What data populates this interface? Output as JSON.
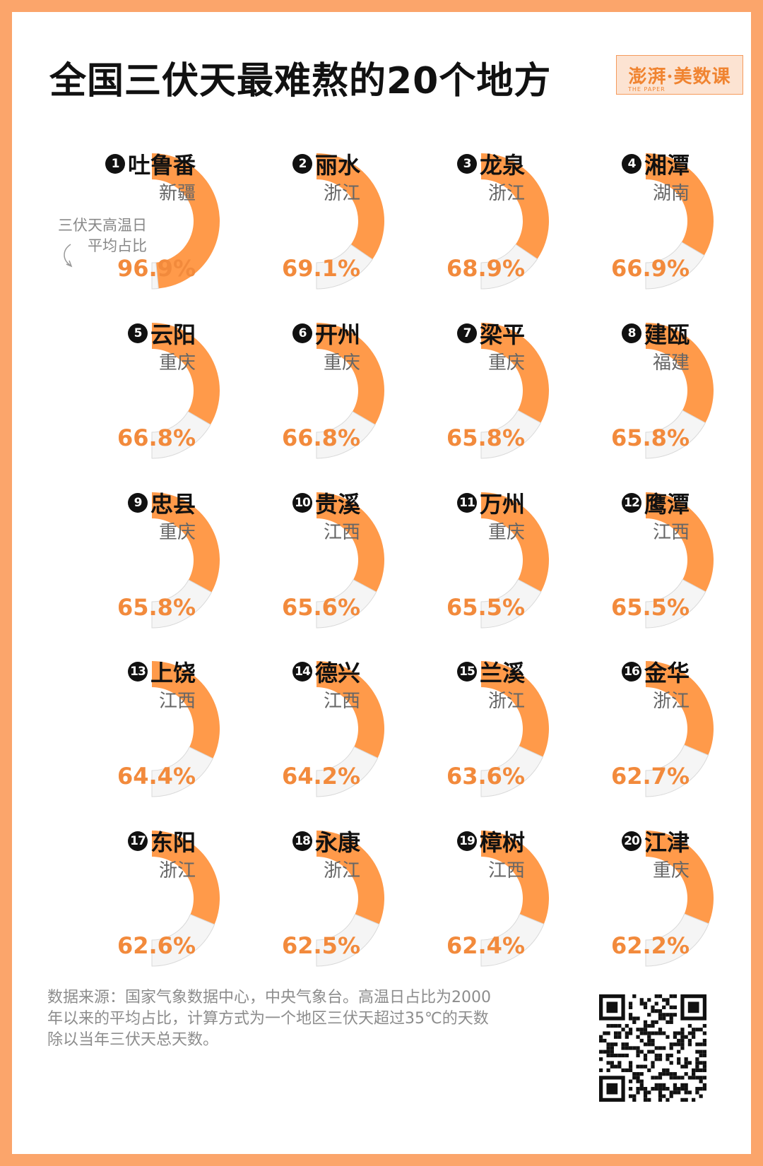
{
  "title": "全国三伏天最难熬的20个地方",
  "logo": {
    "brand": "澎湃·美数课",
    "sub": "THE PAPER"
  },
  "note": {
    "line1": "三伏天高温日",
    "line2": "平均占比"
  },
  "footer": "数据来源：国家气象数据中心，中央气象台。高温日占比为2000年以来的平均占比，计算方式为一个地区三伏天超过35℃的天数除以当年三伏天总天数。",
  "colors": {
    "accent": "#FF9A4A",
    "rest": "#F5F5F5",
    "border": "#FBA56B",
    "pct": "#F28A3C"
  },
  "chart_data": {
    "type": "pie",
    "series_label": "三伏天高温日平均占比",
    "items": [
      {
        "rank": "1",
        "name": "吐鲁番",
        "province": "新疆",
        "value": 96.9,
        "label": "96.9%"
      },
      {
        "rank": "2",
        "name": "丽水",
        "province": "浙江",
        "value": 69.1,
        "label": "69.1%"
      },
      {
        "rank": "3",
        "name": "龙泉",
        "province": "浙江",
        "value": 68.9,
        "label": "68.9%"
      },
      {
        "rank": "4",
        "name": "湘潭",
        "province": "湖南",
        "value": 66.9,
        "label": "66.9%"
      },
      {
        "rank": "5",
        "name": "云阳",
        "province": "重庆",
        "value": 66.8,
        "label": "66.8%"
      },
      {
        "rank": "6",
        "name": "开州",
        "province": "重庆",
        "value": 66.8,
        "label": "66.8%"
      },
      {
        "rank": "7",
        "name": "梁平",
        "province": "重庆",
        "value": 65.8,
        "label": "65.8%"
      },
      {
        "rank": "8",
        "name": "建瓯",
        "province": "福建",
        "value": 65.8,
        "label": "65.8%"
      },
      {
        "rank": "9",
        "name": "忠县",
        "province": "重庆",
        "value": 65.8,
        "label": "65.8%"
      },
      {
        "rank": "10",
        "name": "贵溪",
        "province": "江西",
        "value": 65.6,
        "label": "65.6%"
      },
      {
        "rank": "11",
        "name": "万州",
        "province": "重庆",
        "value": 65.5,
        "label": "65.5%"
      },
      {
        "rank": "12",
        "name": "鹰潭",
        "province": "江西",
        "value": 65.5,
        "label": "65.5%"
      },
      {
        "rank": "13",
        "name": "上饶",
        "province": "江西",
        "value": 64.4,
        "label": "64.4%"
      },
      {
        "rank": "14",
        "name": "德兴",
        "province": "江西",
        "value": 64.2,
        "label": "64.2%"
      },
      {
        "rank": "15",
        "name": "兰溪",
        "province": "浙江",
        "value": 63.6,
        "label": "63.6%"
      },
      {
        "rank": "16",
        "name": "金华",
        "province": "浙江",
        "value": 62.7,
        "label": "62.7%"
      },
      {
        "rank": "17",
        "name": "东阳",
        "province": "浙江",
        "value": 62.6,
        "label": "62.6%"
      },
      {
        "rank": "18",
        "name": "永康",
        "province": "浙江",
        "value": 62.5,
        "label": "62.5%"
      },
      {
        "rank": "19",
        "name": "樟树",
        "province": "江西",
        "value": 62.4,
        "label": "62.4%"
      },
      {
        "rank": "20",
        "name": "江津",
        "province": "重庆",
        "value": 62.2,
        "label": "62.2%"
      }
    ]
  }
}
